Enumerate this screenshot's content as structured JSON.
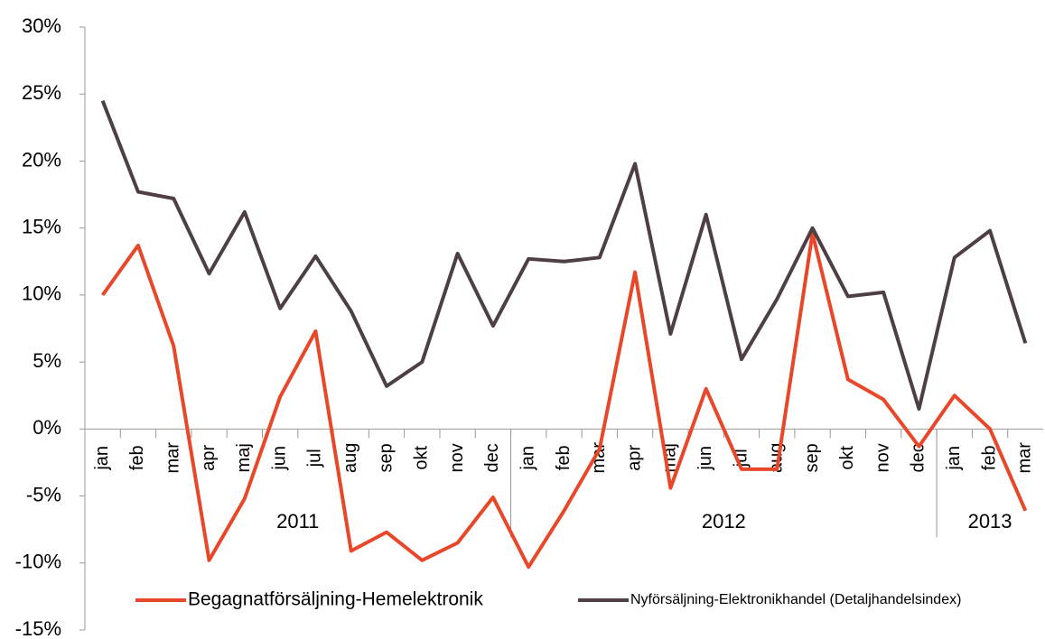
{
  "chart_data": {
    "type": "line",
    "category_groups": [
      {
        "label": "2011",
        "categories": [
          "jan",
          "feb",
          "mar",
          "apr",
          "maj",
          "jun",
          "jul",
          "aug",
          "sep",
          "okt",
          "nov",
          "dec"
        ]
      },
      {
        "label": "2012",
        "categories": [
          "jan",
          "feb",
          "mar",
          "apr",
          "maj",
          "jun",
          "jul",
          "aug",
          "sep",
          "okt",
          "nov",
          "dec"
        ]
      },
      {
        "label": "2013",
        "categories": [
          "jan",
          "feb",
          "mar"
        ]
      }
    ],
    "series": [
      {
        "name": "Begagnatförsäljning-Hemelektronik",
        "color": "#e8472a",
        "values": [
          10.0,
          13.7,
          6.2,
          -9.8,
          -5.2,
          2.4,
          7.3,
          -9.1,
          -7.7,
          -9.8,
          -8.5,
          -5.1,
          -10.3,
          -6.1,
          -1.5,
          11.7,
          -4.4,
          3.0,
          -3.0,
          -3.0,
          14.6,
          3.7,
          2.2,
          -1.3,
          2.5,
          0,
          -6.1
        ]
      },
      {
        "name": "Nyförsäljning-Elektronikhandel (Detaljhandelsindex)",
        "color": "#4d3f42",
        "values": [
          24.5,
          17.7,
          17.2,
          11.6,
          16.2,
          9.0,
          12.9,
          8.8,
          3.2,
          5.0,
          13.1,
          7.7,
          12.7,
          12.5,
          12.8,
          19.8,
          7.1,
          16.0,
          5.2,
          9.7,
          15.0,
          9.9,
          10.2,
          1.5,
          12.8,
          14.8,
          6.4
        ]
      }
    ],
    "ylim": [
      -15,
      30
    ],
    "yticks": [
      {
        "value": -15,
        "label": "-15%"
      },
      {
        "value": -10,
        "label": "-10%"
      },
      {
        "value": -5,
        "label": "-5%"
      },
      {
        "value": 0,
        "label": "0%"
      },
      {
        "value": 5,
        "label": "5%"
      },
      {
        "value": 10,
        "label": "10%"
      },
      {
        "value": 15,
        "label": "15%"
      },
      {
        "value": 20,
        "label": "20%"
      },
      {
        "value": 25,
        "label": "25%"
      },
      {
        "value": 30,
        "label": "30%"
      }
    ],
    "legend": "bottom"
  }
}
